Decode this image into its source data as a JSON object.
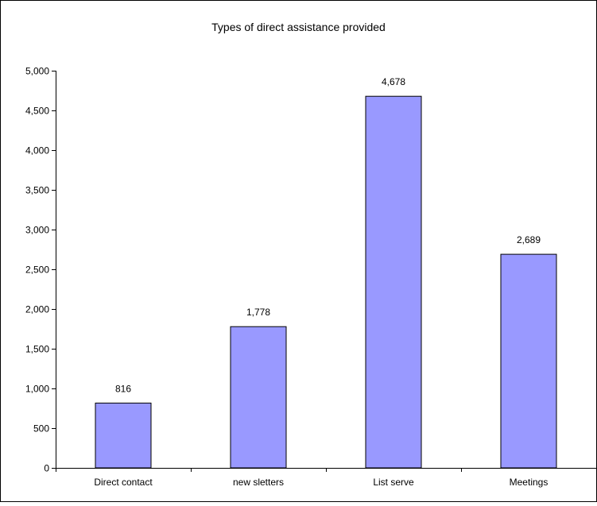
{
  "chart_data": {
    "type": "bar",
    "title": "Types of direct assistance provided",
    "xlabel": "",
    "ylabel": "",
    "categories": [
      "Direct contact",
      "new sletters",
      "List serve",
      "Meetings"
    ],
    "values": [
      816,
      1778,
      4678,
      2689
    ],
    "value_labels": [
      "816",
      "1,778",
      "4,678",
      "2,689"
    ],
    "ylim": [
      0,
      5000
    ],
    "yticks": [
      0,
      500,
      1000,
      1500,
      2000,
      2500,
      3000,
      3500,
      4000,
      4500,
      5000
    ],
    "ytick_labels": [
      "0",
      "500",
      "1,000",
      "1,500",
      "2,000",
      "2,500",
      "3,000",
      "3,500",
      "4,000",
      "4,500",
      "5,000"
    ],
    "grid": false,
    "legend": "none",
    "colors": {
      "bar_fill": "#9999ff",
      "bar_stroke": "#000000",
      "axis": "#000000",
      "frame": "#000000",
      "background": "#ffffff"
    }
  }
}
